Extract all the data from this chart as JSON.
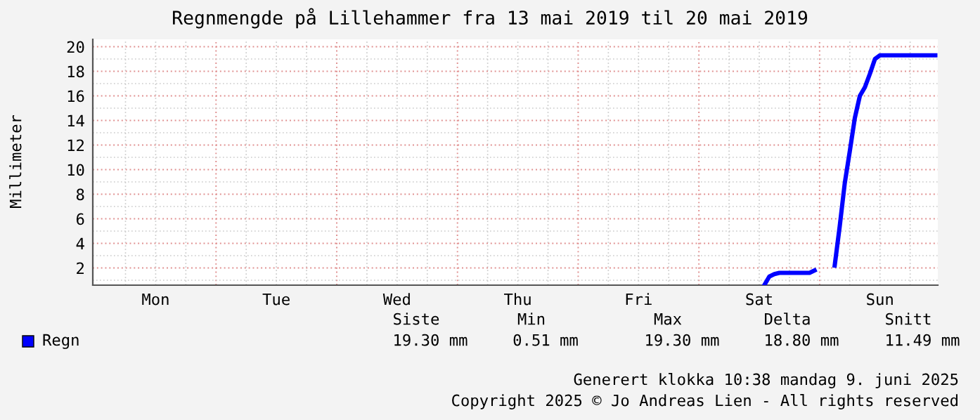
{
  "chart_data": {
    "type": "line",
    "title": "Regnmengde på Lillehammer fra 13 mai 2019 til 20 mai 2019",
    "ylabel": "Millimeter",
    "categories": [
      null,
      null,
      null,
      null,
      null,
      null,
      null,
      null,
      null,
      null,
      null,
      null,
      "Mon",
      null,
      null,
      null,
      null,
      null,
      null,
      null,
      null,
      null,
      null,
      null,
      null,
      null,
      null,
      null,
      null,
      null,
      null,
      null,
      null,
      null,
      null,
      null,
      "Tue",
      null,
      null,
      null,
      null,
      null,
      null,
      null,
      null,
      null,
      null,
      null,
      null,
      null,
      null,
      null,
      null,
      null,
      null,
      null,
      null,
      null,
      null,
      null,
      "Wed",
      null,
      null,
      null,
      null,
      null,
      null,
      null,
      null,
      null,
      null,
      null,
      null,
      null,
      null,
      null,
      null,
      null,
      null,
      null,
      null,
      null,
      null,
      null,
      "Thu",
      null,
      null,
      null,
      null,
      null,
      null,
      null,
      null,
      null,
      null,
      null,
      null,
      null,
      null,
      null,
      null,
      null,
      null,
      null,
      null,
      null,
      null,
      null,
      "Fri",
      null,
      null,
      null,
      null,
      null,
      null,
      null,
      null,
      null,
      null,
      null,
      null,
      null,
      null,
      null,
      null,
      null,
      null,
      null,
      null,
      null,
      null,
      null,
      "Sat",
      null,
      null,
      null,
      null,
      null,
      null,
      null,
      null,
      null,
      null,
      null,
      null,
      null,
      null,
      null,
      null,
      null,
      null,
      null,
      null,
      null,
      null,
      null,
      "Sun",
      null,
      null,
      null,
      null,
      null,
      null,
      null,
      null,
      null,
      null,
      null
    ],
    "series": [
      {
        "name": "Regn",
        "color": "#0000ff",
        "values": [
          null,
          null,
          null,
          null,
          null,
          null,
          null,
          null,
          null,
          null,
          null,
          null,
          null,
          null,
          null,
          null,
          null,
          null,
          null,
          null,
          null,
          null,
          null,
          null,
          null,
          null,
          null,
          null,
          null,
          null,
          null,
          null,
          null,
          null,
          null,
          null,
          null,
          null,
          null,
          null,
          null,
          null,
          null,
          null,
          null,
          null,
          null,
          null,
          null,
          null,
          null,
          null,
          null,
          null,
          null,
          null,
          null,
          null,
          null,
          null,
          null,
          null,
          null,
          null,
          null,
          null,
          null,
          null,
          null,
          null,
          null,
          null,
          null,
          null,
          null,
          null,
          null,
          null,
          null,
          null,
          null,
          null,
          null,
          null,
          null,
          null,
          null,
          null,
          null,
          null,
          null,
          null,
          null,
          null,
          null,
          null,
          null,
          null,
          null,
          null,
          null,
          null,
          null,
          null,
          null,
          null,
          null,
          null,
          null,
          null,
          null,
          null,
          null,
          null,
          null,
          null,
          null,
          null,
          null,
          null,
          null,
          null,
          null,
          null,
          null,
          null,
          null,
          null,
          null,
          null,
          null,
          null,
          null,
          0.6,
          1.3,
          1.5,
          1.6,
          1.6,
          1.6,
          1.6,
          1.6,
          1.6,
          1.6,
          1.8,
          null,
          null,
          null,
          2.2,
          5.4,
          8.9,
          11.5,
          14.2,
          16.0,
          16.7,
          17.8,
          19.0,
          19.3,
          19.3,
          19.3,
          19.3,
          19.3,
          19.3,
          19.3,
          19.3,
          19.3,
          19.3,
          19.3,
          19.3
        ]
      }
    ],
    "ylim": [
      0.6,
      20.6
    ],
    "yticks": [
      2,
      4,
      6,
      8,
      10,
      12,
      14,
      16,
      18,
      20
    ],
    "grid": true,
    "legend": "bottom left",
    "annotations": [
      "Siste",
      "Min",
      "Max",
      "Delta",
      "Snitt",
      "19.30 mm",
      "0.51 mm",
      "19.30 mm",
      "18.80 mm",
      "11.49 mm",
      "Generert klokka 10:38 mandag 9. juni 2025",
      "Copyright 2025 © Jo Andreas Lien - All rights reserved"
    ]
  }
}
